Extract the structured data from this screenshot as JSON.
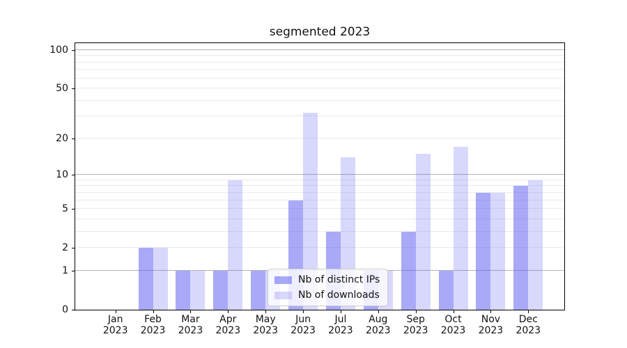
{
  "title": "segmented 2023",
  "legend": {
    "position": "lower center",
    "items": [
      {
        "label": "Nb of distinct IPs",
        "series_key": "bar_distinct_ips"
      },
      {
        "label": "Nb of downloads",
        "series_key": "bar_downloads"
      }
    ]
  },
  "colors": {
    "bar_distinct_ips": "rgba(91,91,242,0.52)",
    "bar_downloads": "rgba(91,91,242,0.235)",
    "grid_major": "#b3b3b3",
    "grid_minor": "#eaeaea",
    "spine": "#000000",
    "legend_border": "#cccccc",
    "legend_bg": "rgba(255,255,255,0.8)"
  },
  "chart_data": {
    "type": "bar",
    "title": "segmented 2023",
    "categories": [
      "Jan",
      "Feb",
      "Mar",
      "Apr",
      "May",
      "Jun",
      "Jul",
      "Aug",
      "Sep",
      "Oct",
      "Nov",
      "Dec"
    ],
    "category_year": "2023",
    "series": [
      {
        "name": "Nb of distinct IPs",
        "values": [
          0,
          2,
          1,
          1,
          1,
          6,
          3,
          1,
          3,
          1,
          7,
          8
        ]
      },
      {
        "name": "Nb of downloads",
        "values": [
          0,
          2,
          1,
          9,
          1,
          32,
          14,
          1,
          15,
          17,
          7,
          9
        ]
      }
    ],
    "yscale": "log1p",
    "ylim": [
      0,
      113
    ],
    "yticks_labeled": [
      0,
      1,
      2,
      5,
      10,
      20,
      50,
      100
    ],
    "gridlines_major": [
      1,
      10,
      100
    ],
    "gridlines_minor": [
      2,
      3,
      4,
      5,
      6,
      7,
      8,
      9,
      20,
      30,
      40,
      50,
      60,
      70,
      80,
      90
    ],
    "grid": true,
    "legend_position": "lower center",
    "xlabel": "",
    "ylabel": ""
  }
}
